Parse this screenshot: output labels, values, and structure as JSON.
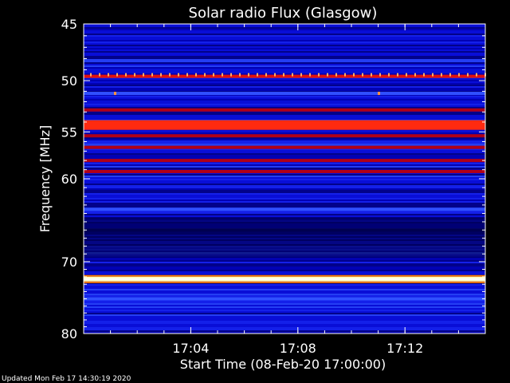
{
  "chart_data": {
    "type": "heatmap",
    "title": "Solar radio Flux (Glasgow)",
    "xlabel": "Start Time (08-Feb-20 17:00:00)",
    "ylabel": "Frequency [MHz]",
    "x_tick_labels": [
      "17:04",
      "17:08",
      "17:12"
    ],
    "x_ticks": [
      "17:04",
      "17:08",
      "17:12"
    ],
    "x_range": [
      "17:00",
      "17:15"
    ],
    "y_tick_labels": [
      "45",
      "50",
      "55",
      "60",
      "70",
      "80"
    ],
    "y_ticks": [
      45,
      50,
      55,
      60,
      70,
      80
    ],
    "y_range": [
      45,
      80
    ],
    "y_scale": "log",
    "y_direction": "increasing downward",
    "colormap": [
      "#000033",
      "#0000c8",
      "#2040ff",
      "#c00000",
      "#ff3000",
      "#ffff60",
      "#ffffff"
    ],
    "frequency_bands": [
      {
        "freq": 49.6,
        "intensity": 0.7
      },
      {
        "freq": 51.2,
        "intensity": 0.3
      },
      {
        "freq": 52.8,
        "intensity": 0.4
      },
      {
        "freq": 54.3,
        "intensity": 0.85
      },
      {
        "freq": 55.4,
        "intensity": 0.55
      },
      {
        "freq": 56.6,
        "intensity": 0.45
      },
      {
        "freq": 58.0,
        "intensity": 0.55
      },
      {
        "freq": 59.2,
        "intensity": 0.45
      },
      {
        "freq": 63.5,
        "intensity": 0.3
      },
      {
        "freq": 66.0,
        "intensity": 0.1
      },
      {
        "freq": 72.3,
        "intensity": 1.0
      },
      {
        "freq": 75.0,
        "intensity": 0.3
      }
    ]
  },
  "footer": {
    "updated": "Updated Mon Feb 17 14:30:19 2020"
  }
}
